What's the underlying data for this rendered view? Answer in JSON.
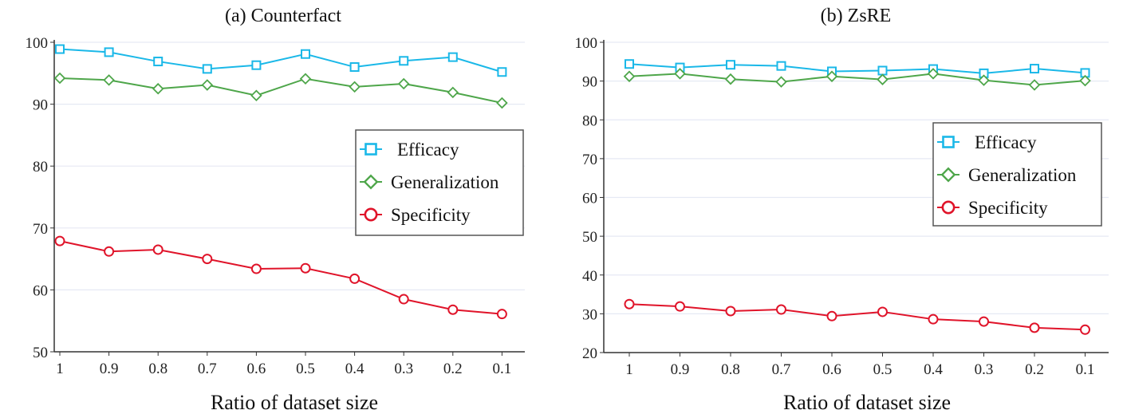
{
  "chart_data": [
    {
      "type": "line",
      "title": "(a) Counterfact",
      "xlabel": "Ratio of dataset size",
      "ylabel": "",
      "categories": [
        "1",
        "0.9",
        "0.8",
        "0.7",
        "0.6",
        "0.5",
        "0.4",
        "0.3",
        "0.2",
        "0.1"
      ],
      "ylim": [
        50,
        100
      ],
      "yticks": [
        50,
        60,
        70,
        80,
        90,
        100
      ],
      "grid": true,
      "legend": "right",
      "series": [
        {
          "name": "Efficacy",
          "color": "#1ab8e8",
          "marker": "square",
          "values": [
            98.9,
            98.4,
            96.9,
            95.7,
            96.3,
            98.1,
            96.0,
            97.0,
            97.6,
            95.2
          ]
        },
        {
          "name": "Generalization",
          "color": "#4ea64a",
          "marker": "diamond",
          "values": [
            94.2,
            93.9,
            92.5,
            93.1,
            91.4,
            94.1,
            92.8,
            93.3,
            91.9,
            90.2
          ]
        },
        {
          "name": "Specificity",
          "color": "#e0142a",
          "marker": "circle",
          "values": [
            67.9,
            66.2,
            66.5,
            65.0,
            63.4,
            63.5,
            61.8,
            58.5,
            56.8,
            56.1
          ]
        }
      ]
    },
    {
      "type": "line",
      "title": "(b) ZsRE",
      "xlabel": "Ratio of dataset size",
      "ylabel": "",
      "categories": [
        "1",
        "0.9",
        "0.8",
        "0.7",
        "0.6",
        "0.5",
        "0.4",
        "0.3",
        "0.2",
        "0.1"
      ],
      "ylim": [
        20,
        100
      ],
      "yticks": [
        20,
        30,
        40,
        50,
        60,
        70,
        80,
        90,
        100
      ],
      "grid": true,
      "legend": "right",
      "series": [
        {
          "name": "Efficacy",
          "color": "#1ab8e8",
          "marker": "square",
          "values": [
            94.4,
            93.5,
            94.2,
            93.9,
            92.5,
            92.7,
            93.1,
            92.0,
            93.2,
            92.1
          ]
        },
        {
          "name": "Generalization",
          "color": "#4ea64a",
          "marker": "diamond",
          "values": [
            91.2,
            91.9,
            90.5,
            89.8,
            91.2,
            90.4,
            91.9,
            90.2,
            89.0,
            90.1
          ]
        },
        {
          "name": "Specificity",
          "color": "#e0142a",
          "marker": "circle",
          "values": [
            32.5,
            31.9,
            30.7,
            31.1,
            29.4,
            30.5,
            28.6,
            28.0,
            26.4,
            25.9
          ]
        }
      ]
    }
  ]
}
